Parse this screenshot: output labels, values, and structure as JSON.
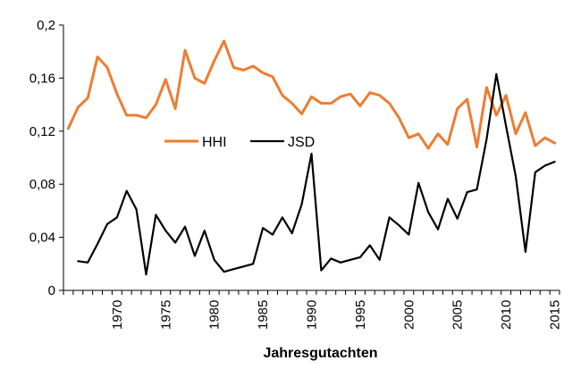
{
  "chart_data": {
    "type": "line",
    "title": "",
    "xlabel": "Jahresgutachten",
    "ylabel": "",
    "xlim": [
      1964.5,
      2015.5
    ],
    "ylim": [
      0,
      0.2
    ],
    "y_ticks": [
      0,
      0.04,
      0.08,
      0.12,
      0.16,
      0.2
    ],
    "y_tick_labels": [
      "0",
      "0,04",
      "0,08",
      "0,12",
      "0,16",
      "0,2"
    ],
    "x_ticks": [
      1970,
      1975,
      1980,
      1985,
      1990,
      1995,
      2000,
      2005,
      2010,
      2015
    ],
    "x_tick_labels": [
      "1970",
      "1975",
      "1980",
      "1985",
      "1990",
      "1995",
      "2000",
      "2005",
      "2010",
      "2015"
    ],
    "grid": false,
    "legend": "center-left",
    "series": [
      {
        "name": "HHI",
        "color": "#ED7D31",
        "x": [
          1965,
          1966,
          1967,
          1968,
          1969,
          1970,
          1971,
          1972,
          1973,
          1974,
          1975,
          1976,
          1977,
          1978,
          1979,
          1980,
          1981,
          1982,
          1983,
          1984,
          1985,
          1986,
          1987,
          1988,
          1989,
          1990,
          1991,
          1992,
          1993,
          1994,
          1995,
          1996,
          1997,
          1998,
          1999,
          2000,
          2001,
          2002,
          2003,
          2004,
          2005,
          2006,
          2007,
          2008,
          2009,
          2010,
          2011,
          2012,
          2013,
          2014,
          2015
        ],
        "y": [
          0.122,
          0.138,
          0.145,
          0.176,
          0.168,
          0.148,
          0.132,
          0.132,
          0.13,
          0.14,
          0.159,
          0.137,
          0.181,
          0.16,
          0.156,
          0.173,
          0.188,
          0.168,
          0.166,
          0.169,
          0.164,
          0.161,
          0.147,
          0.141,
          0.133,
          0.146,
          0.141,
          0.141,
          0.146,
          0.148,
          0.139,
          0.149,
          0.147,
          0.141,
          0.13,
          0.115,
          0.118,
          0.107,
          0.118,
          0.11,
          0.137,
          0.144,
          0.108,
          0.153,
          0.132,
          0.147,
          0.118,
          0.134,
          0.109,
          0.115,
          0.111
        ]
      },
      {
        "name": "JSD",
        "color": "#000000",
        "x": [
          1966,
          1967,
          1968,
          1969,
          1970,
          1971,
          1972,
          1973,
          1974,
          1975,
          1976,
          1977,
          1978,
          1979,
          1980,
          1981,
          1982,
          1983,
          1984,
          1985,
          1986,
          1987,
          1988,
          1989,
          1990,
          1991,
          1992,
          1993,
          1994,
          1995,
          1996,
          1997,
          1998,
          1999,
          2000,
          2001,
          2002,
          2003,
          2004,
          2005,
          2006,
          2007,
          2008,
          2009,
          2010,
          2011,
          2012,
          2013,
          2014,
          2015
        ],
        "y": [
          0.022,
          0.021,
          0.035,
          0.05,
          0.055,
          0.075,
          0.061,
          0.012,
          0.057,
          0.045,
          0.036,
          0.048,
          0.026,
          0.045,
          0.023,
          0.014,
          0.016,
          0.018,
          0.02,
          0.047,
          0.042,
          0.055,
          0.043,
          0.065,
          0.103,
          0.015,
          0.024,
          0.021,
          0.023,
          0.025,
          0.034,
          0.023,
          0.055,
          0.049,
          0.042,
          0.081,
          0.059,
          0.046,
          0.069,
          0.054,
          0.074,
          0.076,
          0.114,
          0.163,
          0.124,
          0.086,
          0.029,
          0.089,
          0.094,
          0.097
        ]
      }
    ]
  }
}
